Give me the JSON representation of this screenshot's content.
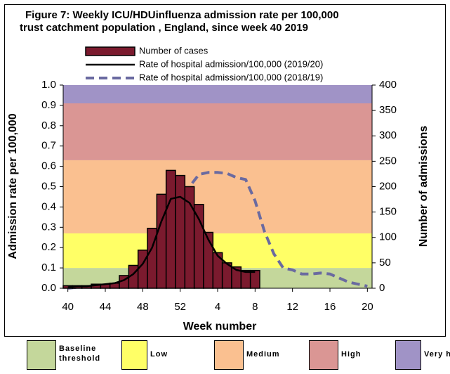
{
  "chart_data": {
    "type": "combo",
    "title": [
      "Figure 7: Weekly ICU/HDUinfluenza admission rate per 100,000",
      "trust catchment population , England, since week 40 2019"
    ],
    "x_label": "Week number",
    "y_label": "Admission rate per 100,000",
    "y2_label": "Number of admissions",
    "categories": [
      40,
      null,
      null,
      null,
      44,
      null,
      null,
      null,
      48,
      null,
      null,
      null,
      52,
      null,
      null,
      null,
      4,
      null,
      null,
      null,
      8,
      null,
      null,
      null,
      12,
      null,
      null,
      null,
      16,
      null,
      null,
      null,
      20
    ],
    "ylim": [
      0,
      1
    ],
    "yticks": [
      {
        "value": 0,
        "label": "0.0"
      },
      0.1,
      0.2,
      0.3,
      0.4,
      0.5,
      0.6,
      0.7,
      0.8,
      0.9,
      {
        "value": 1,
        "label": "1.0"
      }
    ],
    "y2lim": [
      0,
      400
    ],
    "y2ticks": [
      0,
      50,
      100,
      150,
      200,
      250,
      300,
      350,
      400
    ],
    "bands": [
      {
        "name": "Baseline threshold",
        "color": "#c4d79b",
        "from": 0,
        "to": 0.1
      },
      {
        "name": "Low",
        "color": "#ffff66",
        "from": 0.1,
        "to": 0.27
      },
      {
        "name": "Medium",
        "color": "#fac090",
        "from": 0.27,
        "to": 0.63
      },
      {
        "name": "High",
        "color": "#da9694",
        "from": 0.63,
        "to": 0.91
      },
      {
        "name": "Very high",
        "color": "#a093c6",
        "from": 0.91,
        "to": 1
      }
    ],
    "series": [
      {
        "name": "Number of cases",
        "type": "bar",
        "axis": "y2",
        "color": "#7b1a2e",
        "values": [
          5,
          5,
          5,
          8,
          8,
          10,
          25,
          45,
          75,
          118,
          185,
          232,
          222,
          200,
          165,
          110,
          70,
          50,
          42,
          35,
          35,
          null,
          null,
          null,
          null,
          null,
          null,
          null,
          null,
          null,
          null,
          null,
          null
        ]
      },
      {
        "name": "Rate of hospital admission/100,000 (2019/20)",
        "type": "line",
        "color": "#000000",
        "values": [
          0.005,
          0.01,
          0.01,
          0.015,
          0.02,
          0.025,
          0.04,
          0.07,
          0.12,
          0.2,
          0.33,
          0.44,
          0.45,
          0.42,
          0.34,
          0.24,
          0.16,
          0.12,
          0.09,
          0.08,
          0.08,
          null,
          null,
          null,
          null,
          null,
          null,
          null,
          null,
          null,
          null,
          null,
          null
        ]
      },
      {
        "name": "Rate of hospital admission/100,000 (2018/19)",
        "type": "dashed",
        "color": "#6a6aa0",
        "values": [
          0,
          0.005,
          0.005,
          0.008,
          0.01,
          0.015,
          0.02,
          0.03,
          0.04,
          0.07,
          0.13,
          0.22,
          0.35,
          0.5,
          0.56,
          0.57,
          0.57,
          0.565,
          0.545,
          0.535,
          0.43,
          0.28,
          0.17,
          0.1,
          0.09,
          0.07,
          0.07,
          0.075,
          0.07,
          0.05,
          0.03,
          0.02,
          0.01
        ]
      }
    ]
  }
}
